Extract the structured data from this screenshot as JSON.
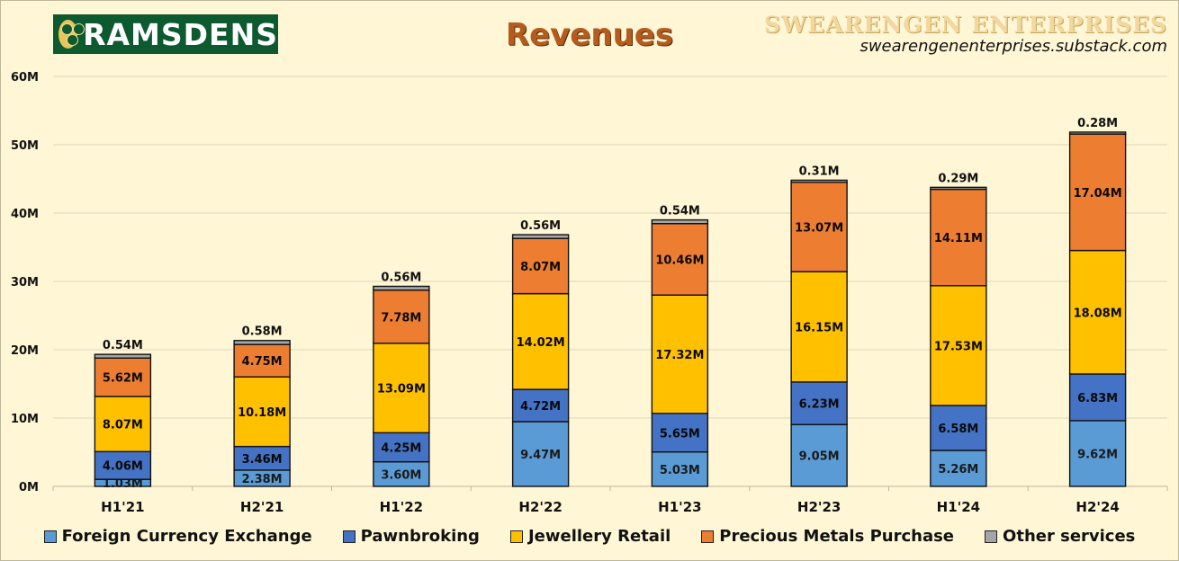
{
  "header": {
    "logo_text": "RAMSDENS",
    "title": "Revenues",
    "brand_name": "SWEARENGEN ENTERPRISES",
    "brand_url": "swearengenenterprises.substack.com"
  },
  "chart_data": {
    "type": "bar",
    "stacked": true,
    "title": "Revenues",
    "xlabel": "",
    "ylabel": "",
    "ylim": [
      0,
      60
    ],
    "unit": "M",
    "y_ticks": [
      "0M",
      "10M",
      "20M",
      "30M",
      "40M",
      "50M",
      "60M"
    ],
    "grid": true,
    "legend_position": "bottom",
    "categories": [
      "H1'21",
      "H2'21",
      "H1'22",
      "H2'22",
      "H1'23",
      "H2'23",
      "H1'24",
      "H2'24"
    ],
    "series": [
      {
        "name": "Foreign Currency Exchange",
        "color": "#5b9bd5",
        "values": [
          1.03,
          2.38,
          3.6,
          9.47,
          5.03,
          9.05,
          5.26,
          9.62
        ],
        "labels": [
          "1.03M",
          "2.38M",
          "3.60M",
          "9.47M",
          "5.03M",
          "9.05M",
          "5.26M",
          "9.62M"
        ]
      },
      {
        "name": "Pawnbroking",
        "color": "#4472c4",
        "values": [
          4.06,
          3.46,
          4.25,
          4.72,
          5.65,
          6.23,
          6.58,
          6.83
        ],
        "labels": [
          "4.06M",
          "3.46M",
          "4.25M",
          "4.72M",
          "5.65M",
          "6.23M",
          "6.58M",
          "6.83M"
        ]
      },
      {
        "name": "Jewellery Retail",
        "color": "#ffc000",
        "values": [
          8.07,
          10.18,
          13.09,
          14.02,
          17.32,
          16.15,
          17.53,
          18.08
        ],
        "labels": [
          "8.07M",
          "10.18M",
          "13.09M",
          "14.02M",
          "17.32M",
          "16.15M",
          "17.53M",
          "18.08M"
        ]
      },
      {
        "name": "Precious Metals Purchase",
        "color": "#ed7d31",
        "values": [
          5.62,
          4.75,
          7.78,
          8.07,
          10.46,
          13.07,
          14.11,
          17.04
        ],
        "labels": [
          "5.62M",
          "4.75M",
          "7.78M",
          "8.07M",
          "10.46M",
          "13.07M",
          "14.11M",
          "17.04M"
        ]
      },
      {
        "name": "Other services",
        "color": "#a5a5a5",
        "values": [
          0.54,
          0.58,
          0.56,
          0.56,
          0.54,
          0.31,
          0.29,
          0.28
        ],
        "labels": [
          "0.54M",
          "0.58M",
          "0.56M",
          "0.56M",
          "0.54M",
          "0.31M",
          "0.29M",
          "0.28M"
        ]
      }
    ]
  }
}
